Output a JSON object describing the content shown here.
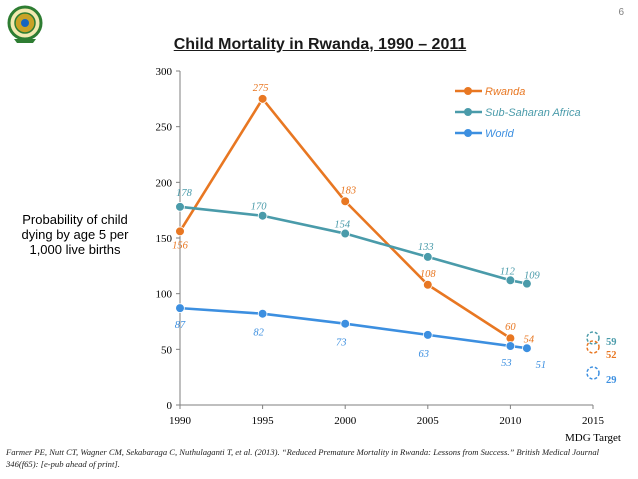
{
  "page_number": "6",
  "title": "Child Mortality in Rwanda, 1990 – 2011",
  "y_axis_label": "Probability of child dying by age 5 per 1,000 live births",
  "citation": "Farmer PE, Nutt CT, Wagner CM, Sekabaraga C, Nuthulaganti T, et al. (2013). “Reduced Premature Mortality in Rwanda: Lessons from Success.” British Medical Journal 346(f65): [e-pub ahead of print].",
  "colors": {
    "rwanda": "#E87722",
    "ssa": "#4A9BAA",
    "world": "#3C8FE0",
    "axis": "#7f7f7f"
  },
  "chart_data": {
    "type": "line",
    "x_ticks": [
      1990,
      1995,
      2000,
      2005,
      2010,
      2015
    ],
    "y_ticks": [
      0,
      50,
      100,
      150,
      200,
      250,
      300
    ],
    "xlim": [
      1990,
      2015
    ],
    "ylim": [
      0,
      300
    ],
    "x_annotation": "MDG Target",
    "legend_position": "top-right",
    "series": [
      {
        "name": "Rwanda",
        "key": "rwanda",
        "x": [
          1990,
          1995,
          2000,
          2005,
          2010
        ],
        "values": [
          156,
          275,
          183,
          108,
          60
        ],
        "labels": [
          "156",
          "275",
          "183",
          "108",
          "60"
        ]
      },
      {
        "name": "Sub-Saharan Africa",
        "key": "ssa",
        "x": [
          1990,
          1995,
          2000,
          2005,
          2010,
          2011
        ],
        "values": [
          178,
          170,
          154,
          133,
          112,
          109
        ],
        "labels": [
          "178",
          "170",
          "154",
          "133",
          "112",
          "109"
        ]
      },
      {
        "name": "World",
        "key": "world",
        "x": [
          1990,
          1995,
          2000,
          2005,
          2010,
          2011
        ],
        "values": [
          87,
          82,
          73,
          63,
          53,
          51
        ],
        "labels": [
          "87",
          "82",
          "73",
          "63",
          "53",
          "51"
        ]
      }
    ],
    "extra_labels": [
      {
        "text": "54",
        "key": "rwanda"
      }
    ],
    "targets": [
      {
        "key": "ssa",
        "value": 59,
        "label": "59"
      },
      {
        "key": "rwanda",
        "value": 52,
        "label": "52"
      },
      {
        "key": "world",
        "value": 29,
        "label": "29"
      }
    ]
  }
}
